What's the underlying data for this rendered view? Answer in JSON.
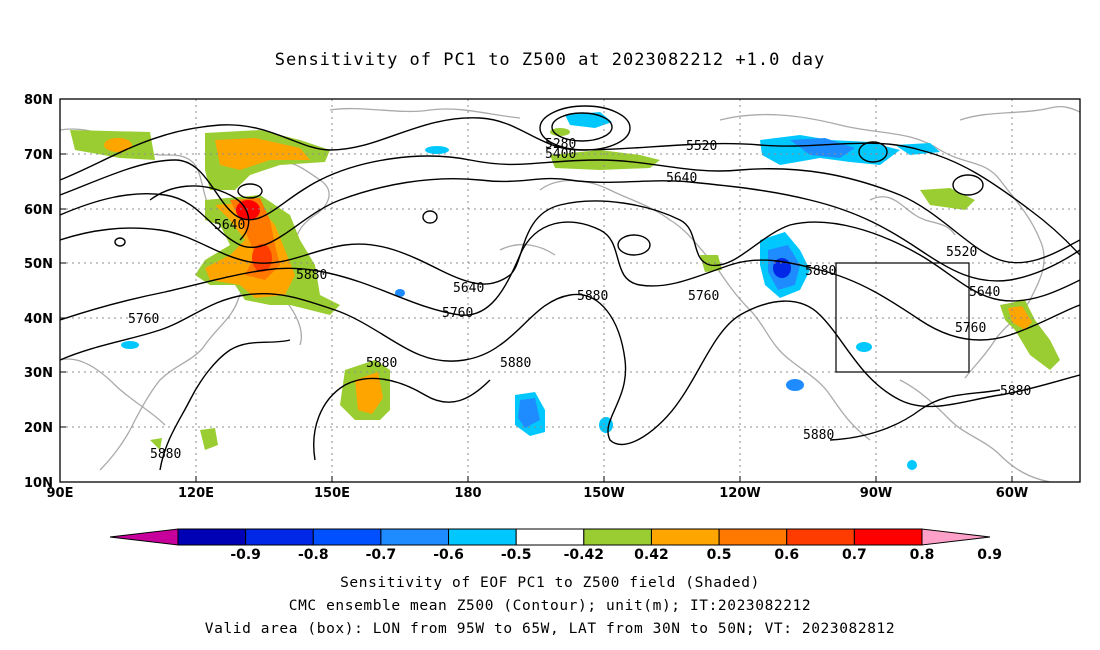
{
  "title": "Sensitivity of PC1 to Z500 at 2023082212 +1.0 day",
  "map": {
    "lon_ticks": [
      "90E",
      "120E",
      "150E",
      "180",
      "150W",
      "120W",
      "90W",
      "60W"
    ],
    "lat_ticks": [
      "80N",
      "70N",
      "60N",
      "50N",
      "40N",
      "30N",
      "20N",
      "10N"
    ],
    "contour_labels": [
      "5280",
      "5400",
      "5520",
      "5640",
      "5640",
      "5880",
      "5640",
      "5760",
      "5880",
      "5760",
      "5880",
      "5520",
      "5640",
      "5760",
      "5760",
      "5880",
      "5880",
      "5880",
      "5880"
    ],
    "valid_box": {
      "lon_west": "95W",
      "lon_east": "65W",
      "lat_south": "30N",
      "lat_north": "50N"
    }
  },
  "colorbar": {
    "labels": [
      "-0.9",
      "-0.8",
      "-0.7",
      "-0.6",
      "-0.5",
      "-0.42",
      "0.42",
      "0.5",
      "0.6",
      "0.7",
      "0.8",
      "0.9"
    ],
    "colors": [
      "#c8009b",
      "#0000b4",
      "#0028e6",
      "#0050ff",
      "#1e8cff",
      "#00c8ff",
      "#ffffff",
      "#9acd32",
      "#ffa500",
      "#ff7800",
      "#ff3c00",
      "#ff0000",
      "#ffa0c8"
    ]
  },
  "captions": [
    "Sensitivity of EOF PC1 to Z500 field (Shaded)",
    "CMC ensemble mean Z500 (Contour); unit(m); IT:2023082212",
    "Valid area (box): LON from 95W to 65W, LAT from 30N to 50N; VT: 2023082812"
  ]
}
